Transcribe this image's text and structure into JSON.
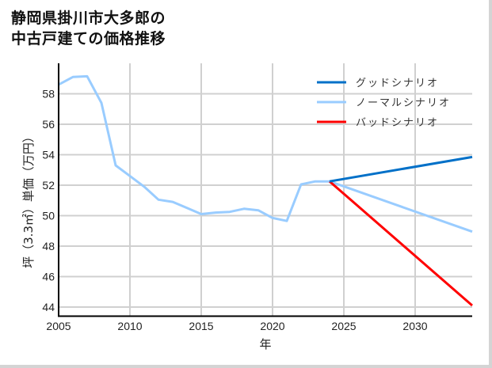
{
  "title": {
    "line1": "静岡県掛川市大多郎の",
    "line2": "中古戸建ての価格推移"
  },
  "chart_data": {
    "type": "line",
    "title": "静岡県掛川市大多郎の中古戸建ての価格推移",
    "xlabel": "年",
    "ylabel": "坪（3.3㎡）単価（万円）",
    "xlim": [
      2005,
      2034
    ],
    "ylim": [
      43.4,
      60.0
    ],
    "xticks": [
      2005,
      2010,
      2015,
      2020,
      2025,
      2030
    ],
    "yticks": [
      44,
      46,
      48,
      50,
      52,
      54,
      56,
      58
    ],
    "grid": true,
    "legend_position": "upper right",
    "historical": {
      "name": "ノーマルシナリオ",
      "x": [
        2005,
        2006,
        2007,
        2008,
        2009,
        2010,
        2011,
        2012,
        2013,
        2014,
        2015,
        2016,
        2017,
        2018,
        2019,
        2020,
        2021,
        2022,
        2023,
        2024
      ],
      "values": [
        58.6,
        59.1,
        59.15,
        57.4,
        53.3,
        52.6,
        51.9,
        51.05,
        50.9,
        50.5,
        50.1,
        50.2,
        50.25,
        50.45,
        50.35,
        49.85,
        49.65,
        52.05,
        52.25,
        52.25
      ]
    },
    "series": [
      {
        "name": "グッドシナリオ",
        "color": "#0070c8",
        "x": [
          2024,
          2034
        ],
        "values": [
          52.25,
          53.85
        ]
      },
      {
        "name": "ノーマルシナリオ",
        "color": "#99ccff",
        "x": [
          2024,
          2034
        ],
        "values": [
          52.25,
          48.95
        ]
      },
      {
        "name": "バッドシナリオ",
        "color": "#ff0000",
        "x": [
          2024,
          2034
        ],
        "values": [
          52.25,
          44.1
        ]
      }
    ]
  },
  "legend": {
    "items": [
      {
        "label": "グッドシナリオ",
        "color": "#0070c8"
      },
      {
        "label": "ノーマルシナリオ",
        "color": "#99ccff"
      },
      {
        "label": "バッドシナリオ",
        "color": "#ff0000"
      }
    ]
  },
  "axes": {
    "xlabel": "年",
    "ylabel": "坪（3.3㎡）単価（万円）",
    "xticks": [
      "2005",
      "2010",
      "2015",
      "2020",
      "2025",
      "2030"
    ],
    "yticks": [
      "44",
      "46",
      "48",
      "50",
      "52",
      "54",
      "56",
      "58"
    ]
  }
}
